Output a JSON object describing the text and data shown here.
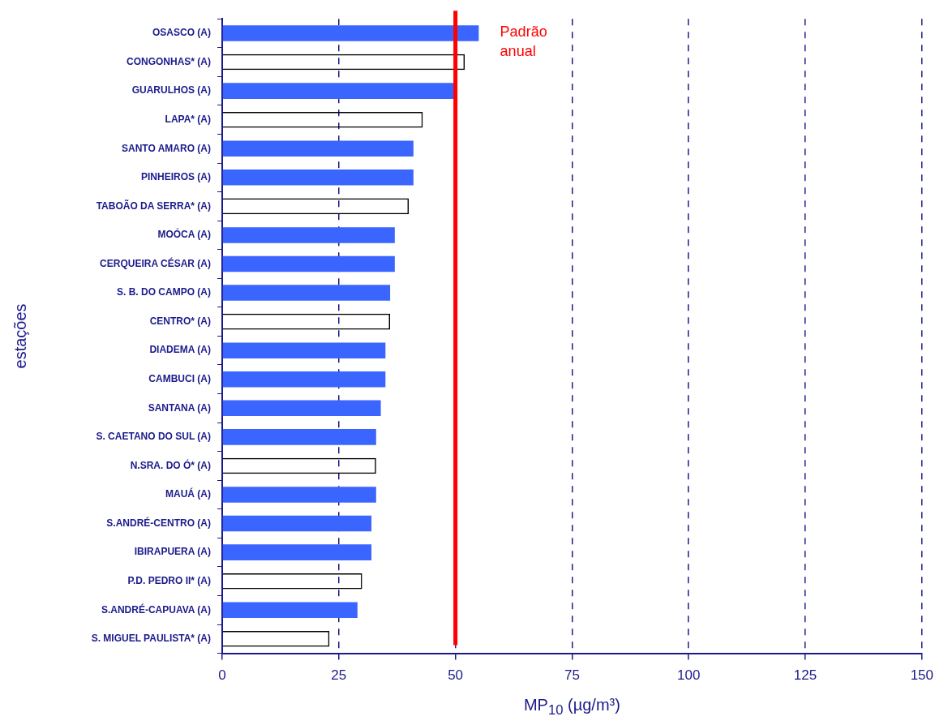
{
  "chart_data": {
    "type": "bar",
    "orientation": "horizontal",
    "categories": [
      "OSASCO (A)",
      "CONGONHAS* (A)",
      "GUARULHOS (A)",
      "LAPA* (A)",
      "SANTO AMARO (A)",
      "PINHEIROS (A)",
      "TABOÃO DA SERRA* (A)",
      "MOÓCA (A)",
      "CERQUEIRA CÉSAR (A)",
      "S. B. DO CAMPO (A)",
      "CENTRO* (A)",
      "DIADEMA (A)",
      "CAMBUCI (A)",
      "SANTANA (A)",
      "S. CAETANO DO SUL (A)",
      "N.SRA. DO Ó* (A)",
      "MAUÁ (A)",
      "S.ANDRÉ-CENTRO (A)",
      "IBIRAPUERA (A)",
      "P.D. PEDRO II* (A)",
      "S.ANDRÉ-CAPUAVA (A)",
      "S. MIGUEL PAULISTA* (A)"
    ],
    "series": [
      {
        "color": "#3a66ff",
        "values": [
          55,
          null,
          50,
          null,
          41,
          41,
          null,
          37,
          37,
          36,
          null,
          35,
          35,
          34,
          33,
          null,
          33,
          32,
          32,
          null,
          29,
          null
        ]
      },
      {
        "color": "#000000",
        "line_style": "dashed",
        "values": [
          null,
          52,
          null,
          43,
          null,
          null,
          40,
          null,
          null,
          null,
          36,
          null,
          null,
          null,
          null,
          33,
          null,
          null,
          null,
          30,
          null,
          23
        ]
      }
    ],
    "xlabel": "MP$_{10}$ (µg/m³)",
    "ylabel": "estações",
    "xlim": [
      0,
      150
    ],
    "xticks": [
      0,
      25,
      50,
      75,
      100,
      125,
      150
    ],
    "grid": "x",
    "ref_lines": [
      {
        "axis": "x",
        "value": 50,
        "label": "Padrão anual",
        "color": "#ff0000"
      }
    ]
  }
}
